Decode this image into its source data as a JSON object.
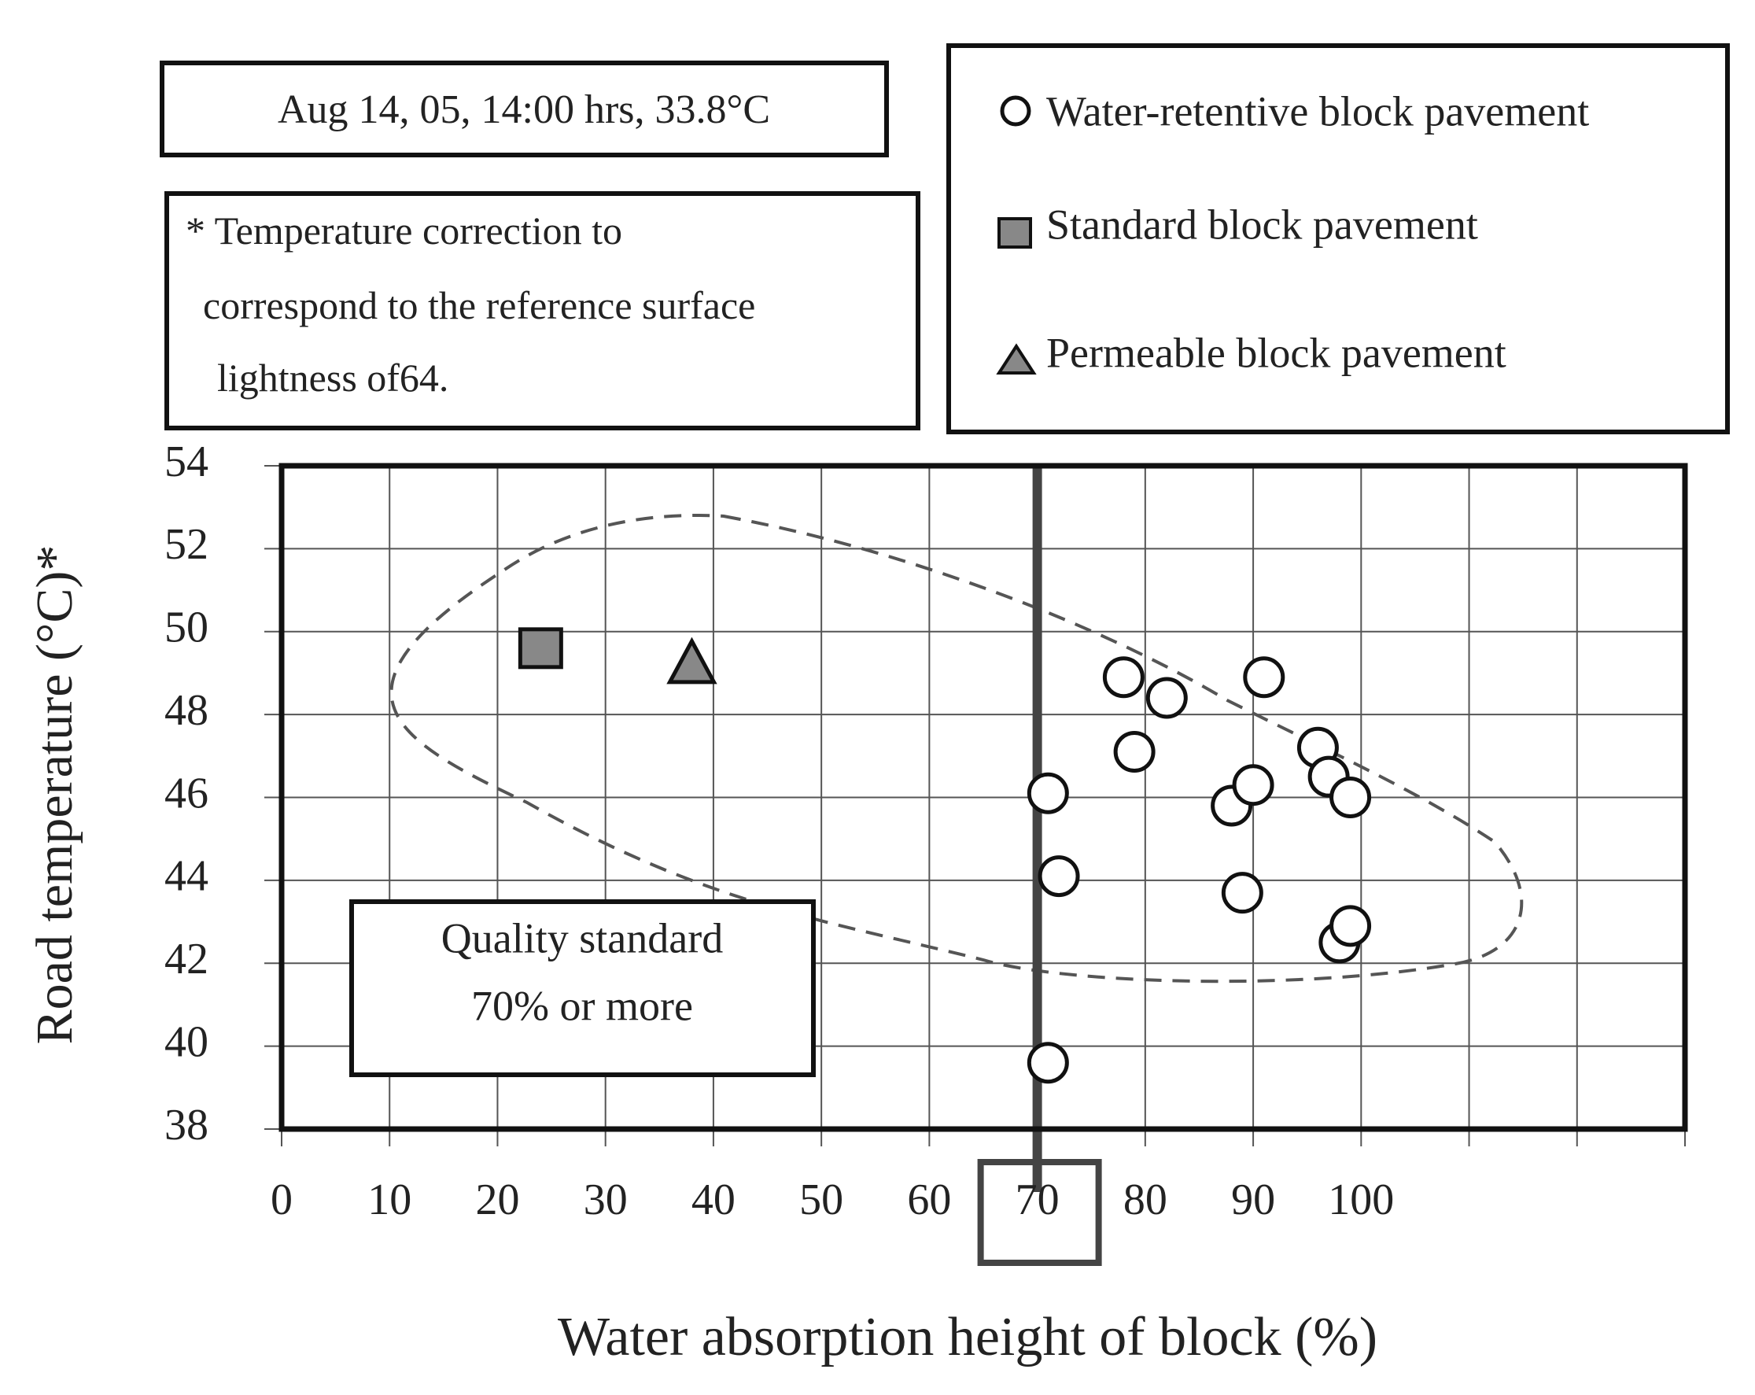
{
  "chart_data": {
    "type": "scatter",
    "xlabel": "Water absorption height of block (%)",
    "ylabel": "Road temperature (°C)*",
    "xlim": [
      0,
      130
    ],
    "ylim": [
      38,
      54
    ],
    "x_ticks": [
      "0",
      "10",
      "20",
      "30",
      "40",
      "50",
      "60",
      "70",
      "80",
      "90",
      "100"
    ],
    "y_ticks": [
      "54",
      "52",
      "50",
      "48",
      "46",
      "44",
      "42",
      "40",
      "38"
    ],
    "grid": true,
    "highlighted_x_tick": "70",
    "reference_line_x": 70,
    "series": [
      {
        "name": "Water-retentive block pavement",
        "marker": "open-circle",
        "points": [
          {
            "x": 71,
            "y": 46.1
          },
          {
            "x": 72,
            "y": 44.1
          },
          {
            "x": 71,
            "y": 39.6
          },
          {
            "x": 78,
            "y": 48.9
          },
          {
            "x": 79,
            "y": 47.1
          },
          {
            "x": 82,
            "y": 48.4
          },
          {
            "x": 88,
            "y": 45.8
          },
          {
            "x": 89,
            "y": 43.7
          },
          {
            "x": 90,
            "y": 46.3
          },
          {
            "x": 91,
            "y": 48.9
          },
          {
            "x": 96,
            "y": 47.2
          },
          {
            "x": 97,
            "y": 46.5
          },
          {
            "x": 99,
            "y": 46.0
          },
          {
            "x": 98,
            "y": 42.5
          },
          {
            "x": 99,
            "y": 42.9
          }
        ]
      },
      {
        "name": "Standard block pavement",
        "marker": "filled-square",
        "color": "#888888",
        "points": [
          {
            "x": 24,
            "y": 49.6
          }
        ]
      },
      {
        "name": "Permeable block pavement",
        "marker": "filled-triangle",
        "color": "#888888",
        "points": [
          {
            "x": 38,
            "y": 49.2
          }
        ]
      }
    ],
    "annotations": {
      "condition": "Aug 14, 05, 14:00 hrs, 33.8°C",
      "note_lines": [
        "* Temperature correction to",
        "correspond to the reference surface",
        "lightness of64."
      ],
      "standard_lines": [
        "Quality standard",
        "70% or more"
      ]
    }
  }
}
